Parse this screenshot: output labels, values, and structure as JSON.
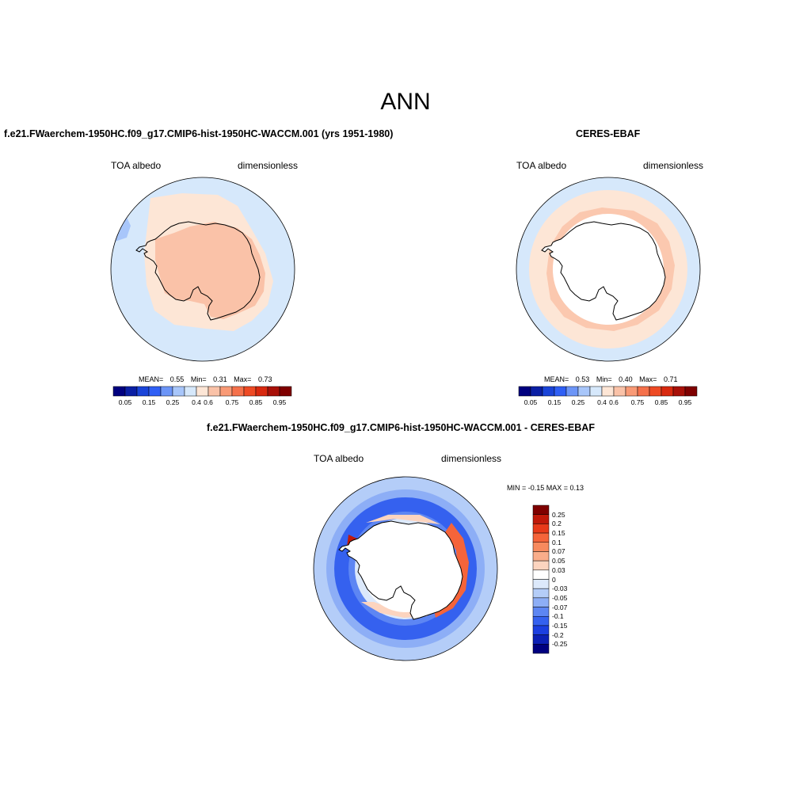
{
  "title": "ANN",
  "panels": [
    {
      "title": "f.e21.FWaerchem-1950HC.f09_g17.CMIP6-hist-1950HC-WACCM.001 (yrs 1951-1980)",
      "left_label": "TOA albedo",
      "right_label": "dimensionless",
      "stats": {
        "mean_label": "MEAN=",
        "mean": "0.55",
        "min_label": "Min=",
        "min": "0.31",
        "max_label": "Max=",
        "max": "0.73"
      }
    },
    {
      "title": "CERES-EBAF",
      "left_label": "TOA albedo",
      "right_label": "dimensionless",
      "stats": {
        "mean_label": "MEAN=",
        "mean": "0.53",
        "min_label": "Min=",
        "min": "0.40",
        "max_label": "Max=",
        "max": "0.71"
      }
    }
  ],
  "diff_panel": {
    "title": "f.e21.FWaerchem-1950HC.f09_g17.CMIP6-hist-1950HC-WACCM.001 - CERES-EBAF",
    "left_label": "TOA albedo",
    "right_label": "dimensionless",
    "minmax": "MIN =  -0.15 MAX =   0.13"
  },
  "colorbar": {
    "colors": [
      "#00007f",
      "#0a1fa4",
      "#1a44d8",
      "#2f5ff5",
      "#6c95f7",
      "#a8c6fa",
      "#d6e8fb",
      "#fde6d6",
      "#fac2a8",
      "#f99a76",
      "#f5714b",
      "#ee4a24",
      "#d8290f",
      "#a81008",
      "#7f0000"
    ],
    "tick_labels": [
      "0.05",
      "0.15",
      "0.25",
      "0.4",
      "0.6",
      "0.75",
      "0.85",
      "0.95"
    ]
  },
  "diff_colorbar": {
    "colors": [
      "#7f0000",
      "#c0190a",
      "#e83a1a",
      "#f5643a",
      "#f78a5e",
      "#f9ad8a",
      "#fcd4bf",
      "#ffffff",
      "#dce9fb",
      "#b4cdf8",
      "#8daef6",
      "#5d86f3",
      "#3561ef",
      "#1c3fe0",
      "#0c20b5",
      "#00007f"
    ],
    "tick_labels": [
      "0.25",
      "0.2",
      "0.15",
      "0.1",
      "0.07",
      "0.05",
      "0.03",
      "0",
      "-0.03",
      "-0.05",
      "-0.07",
      "-0.1",
      "-0.15",
      "-0.2",
      "-0.25"
    ]
  }
}
